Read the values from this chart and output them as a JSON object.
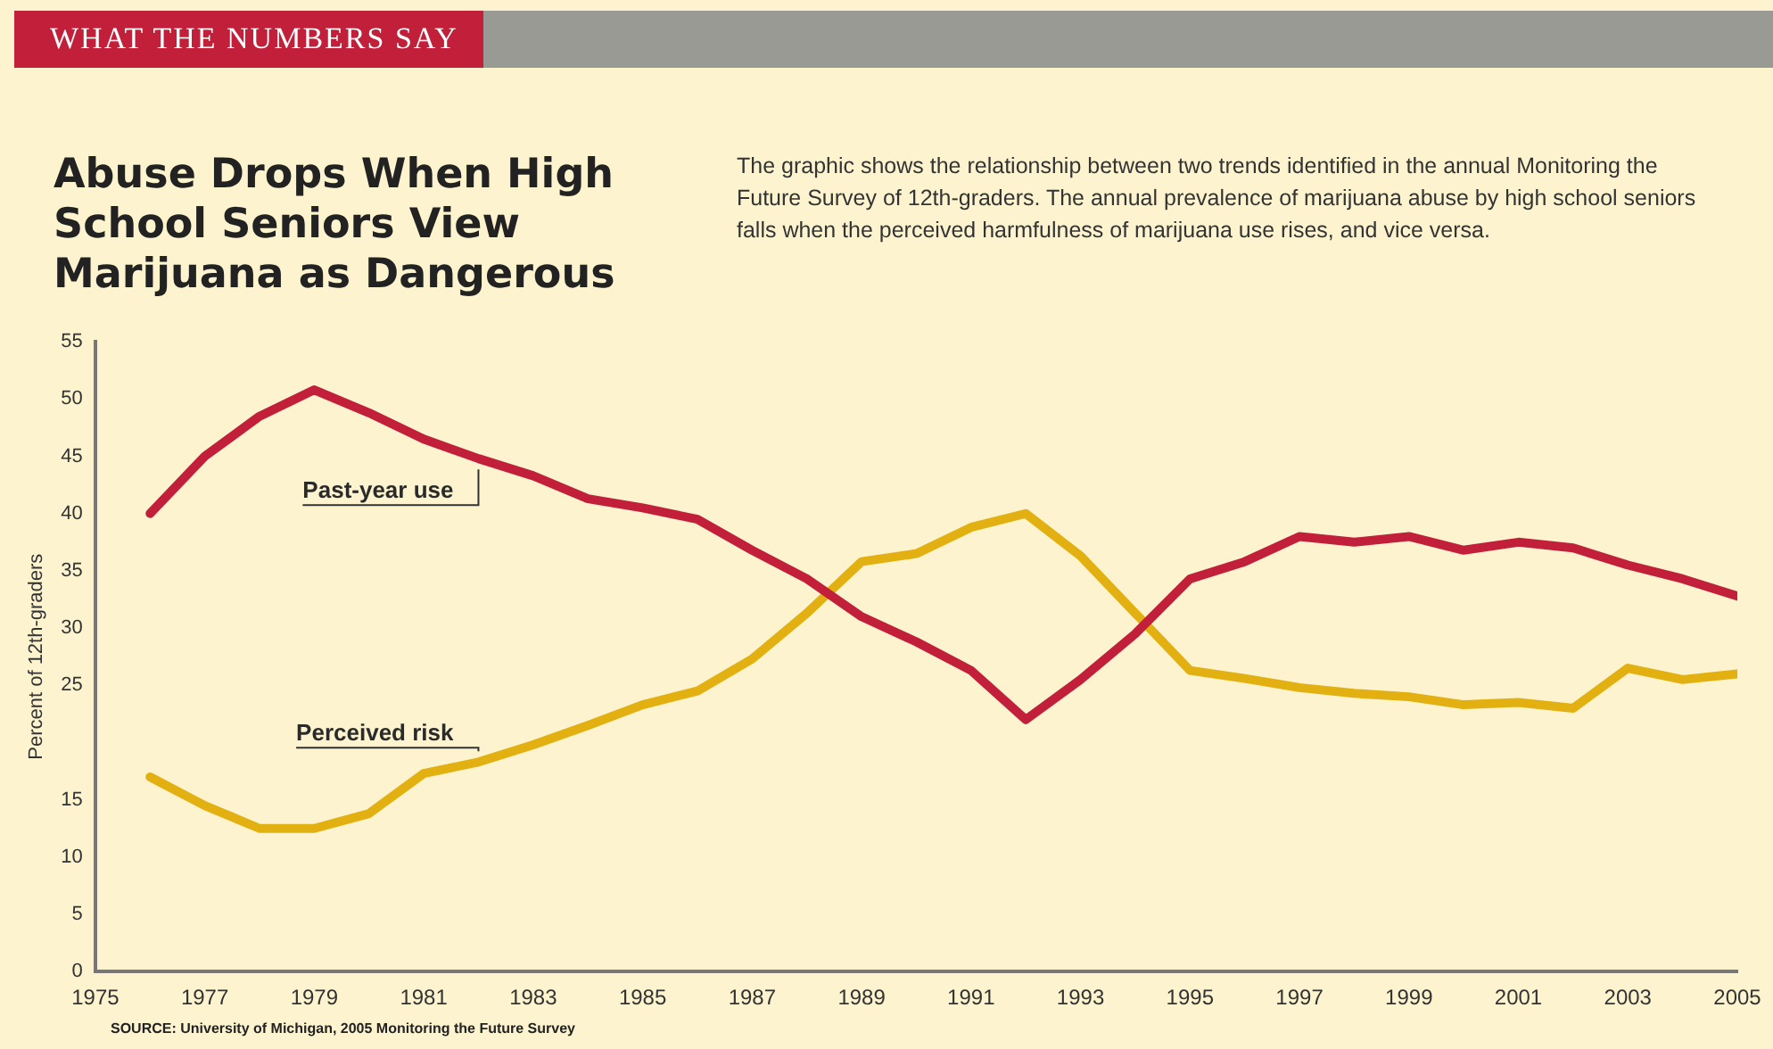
{
  "chart_data": {
    "type": "line",
    "title": "Abuse Drops When High School Seniors View Marijuana as Dangerous",
    "subtitle": "The graphic shows the relationship between two trends identified in the annual Monitoring the Future Survey of 12th-graders. The annual prevalence of marijuana abuse by high school seniors falls when the perceived harmfulness of marijuana use rises, and vice versa.",
    "ylabel": "Percent of 12th-graders",
    "annotations": [
      "WHAT THE NUMBERS SAY",
      "SOURCE: University of Michigan, 2005 Monitoring the Future Survey"
    ],
    "x": [
      1976,
      1977,
      1978,
      1979,
      1980,
      1981,
      1982,
      1983,
      1984,
      1985,
      1986,
      1987,
      1988,
      1989,
      1990,
      1991,
      1992,
      1993,
      1994,
      1995,
      1996,
      1997,
      1998,
      1999,
      2000,
      2001,
      2002,
      2003,
      2004,
      2005
    ],
    "series": [
      {
        "name": "Past-year use",
        "color": "#c21f3a",
        "values": [
          40,
          45,
          48.5,
          50.8,
          48.8,
          46.5,
          44.8,
          43.3,
          41.3,
          40.5,
          39.5,
          36.8,
          34.3,
          31,
          28.8,
          26.3,
          22,
          25.5,
          29.5,
          34.3,
          35.8,
          38,
          37.5,
          38,
          36.8,
          37.5,
          37,
          35.5,
          34.3,
          32.8
        ]
      },
      {
        "name": "Perceived risk",
        "color": "#e2b010",
        "values": [
          17,
          14.5,
          12.5,
          12.5,
          13.8,
          17.3,
          18.3,
          19.8,
          21.5,
          23.3,
          24.5,
          27.3,
          31.3,
          35.8,
          36.5,
          38.8,
          40,
          36.3,
          31.3,
          26.3,
          25.6,
          24.8,
          24.3,
          24,
          23.3,
          23.5,
          23,
          26.5,
          25.5,
          26
        ]
      }
    ],
    "xlim": [
      1975,
      2005
    ],
    "xticks": [
      1975,
      1977,
      1979,
      1981,
      1983,
      1985,
      1987,
      1989,
      1991,
      1993,
      1995,
      1997,
      1999,
      2001,
      2003,
      2005
    ],
    "ylim": [
      0,
      55
    ],
    "yticks": [
      0,
      5,
      10,
      15,
      25,
      30,
      35,
      40,
      45,
      50,
      55
    ],
    "grid": false,
    "legend": false,
    "marker": "none",
    "line_style": "solid"
  }
}
